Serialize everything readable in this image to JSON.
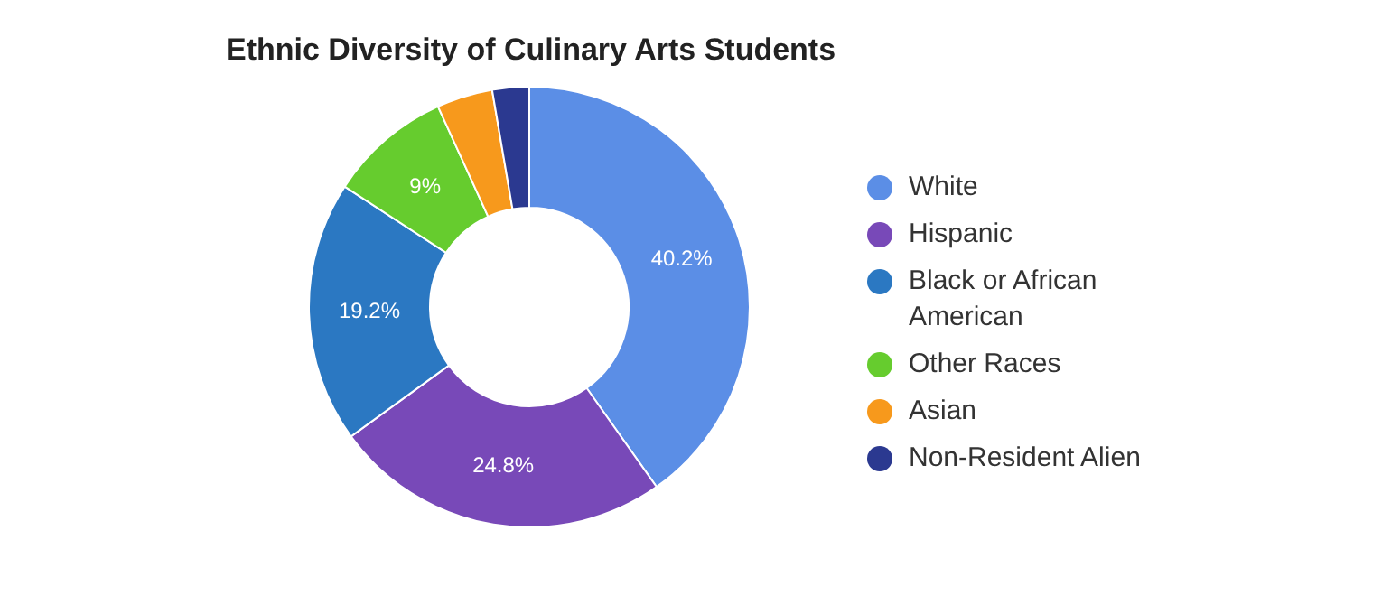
{
  "chart_data": {
    "type": "donut",
    "title": "Ethnic Diversity of Culinary Arts Students",
    "categories": [
      "White",
      "Hispanic",
      "Black or African American",
      "Other Races",
      "Asian",
      "Non-Resident Alien"
    ],
    "values": [
      40.2,
      24.8,
      19.2,
      9,
      4.1,
      2.7
    ],
    "colors": [
      "#5b8ee6",
      "#7849b8",
      "#2b78c2",
      "#66cc2e",
      "#f7991c",
      "#2b3990"
    ],
    "value_labels": [
      "40.2%",
      "24.8%",
      "19.2%",
      "9%",
      null,
      null
    ],
    "legend": "right"
  }
}
